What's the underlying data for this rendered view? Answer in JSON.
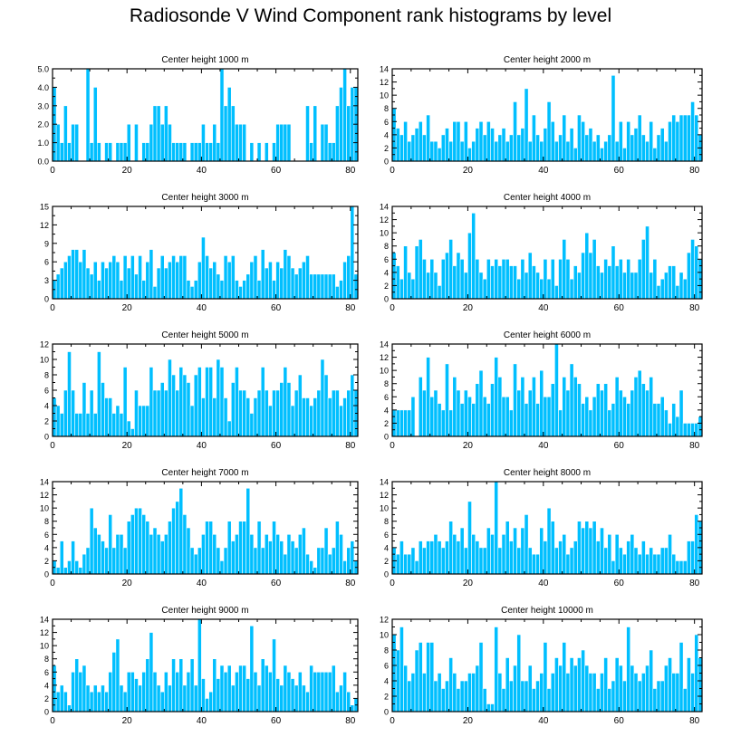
{
  "title": "Radiosonde V Wind Component rank histograms by level",
  "colors": {
    "bar": "#00bfff",
    "bar_edge": "#ffffff",
    "axis": "#000000"
  },
  "chart_data": [
    {
      "type": "bar",
      "title": "Center height 1000 m",
      "x_start": 0,
      "xlim": [
        0,
        82
      ],
      "xticks": [
        0,
        20,
        40,
        60,
        80
      ],
      "ylim": [
        0,
        5
      ],
      "yticks": [
        0.0,
        1.0,
        2.0,
        3.0,
        4.0,
        5.0
      ],
      "ytick_labels": [
        "0.0",
        "1.0",
        "2.0",
        "3.0",
        "4.0",
        "5.0"
      ],
      "values": [
        4,
        2,
        1,
        3,
        1,
        2,
        2,
        0,
        0,
        5,
        1,
        4,
        1,
        0,
        1,
        1,
        0,
        1,
        1,
        1,
        2,
        0,
        2,
        0,
        1,
        1,
        2,
        3,
        3,
        2,
        3,
        2,
        1,
        1,
        1,
        1,
        0,
        1,
        1,
        1,
        2,
        1,
        1,
        2,
        1,
        5,
        3,
        4,
        3,
        2,
        2,
        2,
        0,
        1,
        0,
        1,
        0,
        1,
        0,
        1,
        2,
        2,
        2,
        2,
        0,
        0,
        0,
        0,
        3,
        1,
        3,
        0,
        2,
        2,
        1,
        1,
        3,
        4,
        5,
        3,
        4,
        4
      ]
    },
    {
      "type": "bar",
      "title": "Center height 2000 m",
      "x_start": 0,
      "xlim": [
        0,
        82
      ],
      "xticks": [
        0,
        20,
        40,
        60,
        80
      ],
      "ylim": [
        0,
        14
      ],
      "yticks": [
        0,
        2,
        4,
        6,
        8,
        10,
        12,
        14
      ],
      "ytick_labels": [
        "0",
        "2",
        "4",
        "6",
        "8",
        "10",
        "12",
        "14"
      ],
      "values": [
        8,
        5,
        4,
        6,
        3,
        4,
        5,
        6,
        4,
        7,
        3,
        3,
        2,
        4,
        5,
        3,
        6,
        6,
        3,
        6,
        2,
        3,
        5,
        6,
        4,
        6,
        5,
        3,
        4,
        5,
        3,
        4,
        9,
        4,
        5,
        11,
        3,
        7,
        4,
        3,
        5,
        9,
        6,
        3,
        4,
        7,
        3,
        5,
        2,
        7,
        6,
        4,
        5,
        3,
        4,
        2,
        3,
        4,
        13,
        3,
        6,
        2,
        6,
        4,
        5,
        7,
        4,
        3,
        6,
        2,
        4,
        5,
        3,
        6,
        7,
        6,
        7,
        7,
        7,
        9,
        7,
        4
      ]
    },
    {
      "type": "bar",
      "title": "Center height 3000 m",
      "x_start": 0,
      "xlim": [
        0,
        82
      ],
      "xticks": [
        0,
        20,
        40,
        60,
        80
      ],
      "ylim": [
        0,
        15
      ],
      "yticks": [
        0,
        3,
        6,
        9,
        12,
        15
      ],
      "ytick_labels": [
        "0",
        "3",
        "6",
        "9",
        "12",
        "15"
      ],
      "values": [
        3,
        4,
        5,
        6,
        7,
        8,
        8,
        6,
        8,
        5,
        4,
        6,
        3,
        6,
        5,
        6,
        7,
        6,
        3,
        7,
        5,
        7,
        4,
        7,
        3,
        6,
        8,
        2,
        5,
        7,
        5,
        6,
        7,
        6,
        7,
        7,
        3,
        2,
        3,
        6,
        10,
        7,
        5,
        6,
        4,
        3,
        7,
        6,
        7,
        3,
        2,
        3,
        4,
        6,
        7,
        3,
        8,
        5,
        6,
        3,
        6,
        5,
        8,
        7,
        5,
        4,
        5,
        6,
        7,
        4,
        4,
        4,
        4,
        4,
        4,
        4,
        2,
        3,
        6,
        7,
        15,
        4
      ]
    },
    {
      "type": "bar",
      "title": "Center height 4000 m",
      "x_start": 0,
      "xlim": [
        0,
        82
      ],
      "xticks": [
        0,
        20,
        40,
        60,
        80
      ],
      "ylim": [
        0,
        14
      ],
      "yticks": [
        0,
        2,
        4,
        6,
        8,
        10,
        12,
        14
      ],
      "ytick_labels": [
        "0",
        "2",
        "4",
        "6",
        "8",
        "10",
        "12",
        "14"
      ],
      "values": [
        7,
        5,
        3,
        8,
        4,
        3,
        8,
        9,
        6,
        4,
        6,
        4,
        2,
        6,
        7,
        9,
        5,
        7,
        6,
        4,
        10,
        13,
        6,
        4,
        3,
        6,
        5,
        6,
        5,
        6,
        6,
        5,
        5,
        3,
        6,
        4,
        7,
        5,
        4,
        3,
        6,
        3,
        6,
        2,
        6,
        9,
        6,
        3,
        5,
        4,
        7,
        10,
        7,
        9,
        5,
        4,
        6,
        5,
        8,
        5,
        6,
        4,
        6,
        4,
        4,
        6,
        9,
        11,
        4,
        6,
        2,
        3,
        4,
        5,
        5,
        2,
        4,
        3,
        7,
        9,
        8,
        6
      ]
    },
    {
      "type": "bar",
      "title": "Center height 5000 m",
      "x_start": 0,
      "xlim": [
        0,
        82
      ],
      "xticks": [
        0,
        20,
        40,
        60,
        80
      ],
      "ylim": [
        0,
        12
      ],
      "yticks": [
        0,
        2,
        4,
        6,
        8,
        10,
        12
      ],
      "ytick_labels": [
        "0",
        "2",
        "4",
        "6",
        "8",
        "10",
        "12"
      ],
      "values": [
        5,
        4,
        3,
        6,
        11,
        6,
        3,
        3,
        7,
        3,
        6,
        3,
        11,
        7,
        5,
        5,
        3,
        4,
        3,
        9,
        2,
        1,
        6,
        4,
        4,
        4,
        9,
        6,
        6,
        7,
        6,
        10,
        8,
        6,
        9,
        8,
        7,
        4,
        8,
        9,
        5,
        9,
        9,
        5,
        10,
        9,
        5,
        2,
        7,
        9,
        6,
        6,
        5,
        3,
        5,
        6,
        9,
        6,
        4,
        6,
        6,
        7,
        9,
        7,
        4,
        6,
        8,
        5,
        5,
        4,
        5,
        6,
        10,
        8,
        5,
        6,
        6,
        4,
        5,
        6,
        8,
        6
      ]
    },
    {
      "type": "bar",
      "title": "Center height 6000 m",
      "x_start": 0,
      "xlim": [
        0,
        82
      ],
      "xticks": [
        0,
        20,
        40,
        60,
        80
      ],
      "ylim": [
        0,
        14
      ],
      "yticks": [
        0,
        2,
        4,
        6,
        8,
        10,
        12,
        14
      ],
      "ytick_labels": [
        "0",
        "2",
        "4",
        "6",
        "8",
        "10",
        "12",
        "14"
      ],
      "values": [
        4,
        4,
        4,
        4,
        4,
        6,
        0,
        9,
        7,
        12,
        6,
        7,
        5,
        4,
        11,
        4,
        9,
        7,
        5,
        7,
        6,
        5,
        8,
        10,
        6,
        5,
        8,
        12,
        9,
        6,
        6,
        4,
        11,
        7,
        9,
        5,
        7,
        9,
        5,
        10,
        6,
        6,
        8,
        14,
        4,
        9,
        7,
        11,
        9,
        8,
        5,
        6,
        4,
        6,
        8,
        7,
        8,
        4,
        5,
        9,
        7,
        6,
        5,
        7,
        9,
        10,
        8,
        7,
        9,
        5,
        5,
        6,
        4,
        2,
        5,
        3,
        7,
        2,
        2,
        2,
        2,
        3
      ]
    },
    {
      "type": "bar",
      "title": "Center height 7000 m",
      "x_start": 0,
      "xlim": [
        0,
        82
      ],
      "xticks": [
        0,
        20,
        40,
        60,
        80
      ],
      "ylim": [
        0,
        14
      ],
      "yticks": [
        0,
        2,
        4,
        6,
        8,
        10,
        12,
        14
      ],
      "ytick_labels": [
        "0",
        "2",
        "4",
        "6",
        "8",
        "10",
        "12",
        "14"
      ],
      "values": [
        2,
        1,
        5,
        1,
        2,
        5,
        2,
        1,
        3,
        4,
        10,
        7,
        6,
        5,
        4,
        9,
        4,
        6,
        6,
        4,
        8,
        9,
        10,
        10,
        9,
        8,
        6,
        7,
        6,
        5,
        6,
        8,
        10,
        11,
        13,
        9,
        7,
        4,
        3,
        4,
        6,
        8,
        8,
        6,
        4,
        2,
        4,
        8,
        5,
        6,
        8,
        8,
        13,
        6,
        4,
        8,
        4,
        6,
        5,
        8,
        6,
        5,
        3,
        6,
        5,
        4,
        6,
        7,
        3,
        2,
        1,
        4,
        4,
        7,
        3,
        4,
        8,
        6,
        2,
        4,
        5,
        2
      ]
    },
    {
      "type": "bar",
      "title": "Center height 8000 m",
      "x_start": 0,
      "xlim": [
        0,
        82
      ],
      "xticks": [
        0,
        20,
        40,
        60,
        80
      ],
      "ylim": [
        0,
        14
      ],
      "yticks": [
        0,
        2,
        4,
        6,
        8,
        10,
        12,
        14
      ],
      "ytick_labels": [
        "0",
        "2",
        "4",
        "6",
        "8",
        "10",
        "12",
        "14"
      ],
      "values": [
        4,
        3,
        5,
        3,
        3,
        4,
        2,
        5,
        4,
        5,
        5,
        6,
        5,
        4,
        5,
        8,
        6,
        5,
        7,
        4,
        11,
        6,
        5,
        4,
        4,
        7,
        6,
        14,
        4,
        6,
        8,
        5,
        7,
        4,
        7,
        9,
        4,
        3,
        3,
        7,
        5,
        10,
        8,
        4,
        5,
        6,
        3,
        4,
        5,
        8,
        7,
        8,
        7,
        8,
        5,
        7,
        4,
        6,
        2,
        6,
        4,
        3,
        5,
        6,
        4,
        3,
        5,
        3,
        4,
        3,
        3,
        4,
        4,
        6,
        3,
        2,
        2,
        2,
        5,
        5,
        9,
        8
      ]
    },
    {
      "type": "bar",
      "title": "Center height 9000 m",
      "x_start": 0,
      "xlim": [
        0,
        82
      ],
      "xticks": [
        0,
        20,
        40,
        60,
        80
      ],
      "ylim": [
        0,
        14
      ],
      "yticks": [
        0,
        2,
        4,
        6,
        8,
        10,
        12,
        14
      ],
      "ytick_labels": [
        "0",
        "2",
        "4",
        "6",
        "8",
        "10",
        "12",
        "14"
      ],
      "values": [
        7,
        3,
        4,
        3,
        1,
        6,
        8,
        6,
        7,
        4,
        3,
        4,
        3,
        4,
        3,
        6,
        9,
        11,
        4,
        3,
        6,
        6,
        5,
        4,
        6,
        8,
        12,
        6,
        4,
        3,
        6,
        4,
        8,
        6,
        8,
        4,
        6,
        8,
        4,
        14,
        5,
        2,
        3,
        8,
        5,
        7,
        6,
        7,
        4,
        6,
        7,
        7,
        5,
        13,
        6,
        4,
        8,
        7,
        6,
        11,
        5,
        4,
        7,
        6,
        5,
        4,
        6,
        4,
        3,
        7,
        6,
        6,
        6,
        6,
        6,
        7,
        3,
        4,
        6,
        3,
        1,
        2
      ]
    },
    {
      "type": "bar",
      "title": "Center height 10000 m",
      "x_start": 0,
      "xlim": [
        0,
        82
      ],
      "xticks": [
        0,
        20,
        40,
        60,
        80
      ],
      "ylim": [
        0,
        12
      ],
      "yticks": [
        0,
        2,
        4,
        6,
        8,
        10,
        12
      ],
      "ytick_labels": [
        "0",
        "2",
        "4",
        "6",
        "8",
        "10",
        "12"
      ],
      "values": [
        10,
        8,
        11,
        6,
        4,
        5,
        8,
        9,
        5,
        9,
        9,
        4,
        5,
        3,
        4,
        7,
        5,
        3,
        4,
        4,
        5,
        5,
        6,
        9,
        3,
        1,
        1,
        11,
        5,
        3,
        7,
        4,
        6,
        10,
        4,
        4,
        6,
        3,
        4,
        5,
        9,
        3,
        5,
        7,
        6,
        9,
        5,
        7,
        6,
        7,
        8,
        6,
        5,
        5,
        3,
        5,
        7,
        3,
        4,
        7,
        6,
        4,
        11,
        6,
        5,
        4,
        5,
        6,
        8,
        3,
        4,
        4,
        6,
        7,
        5,
        5,
        9,
        3,
        7,
        5,
        10,
        7
      ]
    }
  ]
}
